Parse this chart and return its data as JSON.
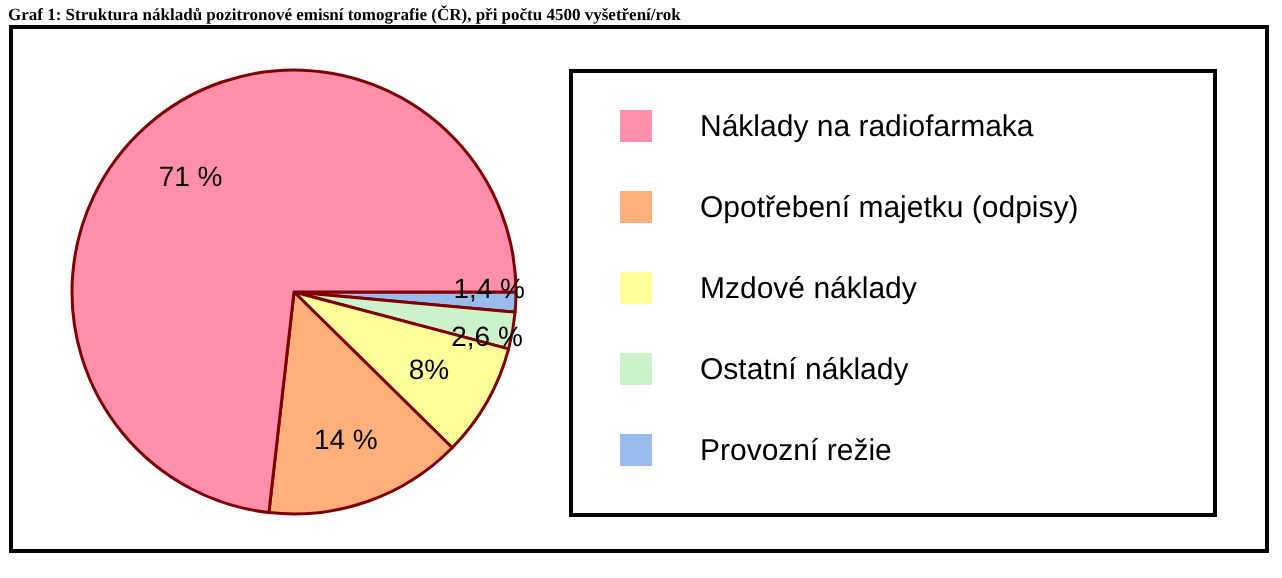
{
  "chart_data": {
    "type": "pie",
    "title": "Graf 1: Struktura nákladů pozitronové emisní tomografie (ČR), při počtu 4500 vyšetření/rok",
    "categories": [
      "Náklady na radiofarmaka",
      "Opotřebení majetku (odpisy)",
      "Mzdové náklady",
      "Ostatní náklady",
      "Provozní režie"
    ],
    "values": [
      71,
      14,
      8,
      2.6,
      1.4
    ],
    "colors": [
      "#ff8fab",
      "#ffb07a",
      "#ffff99",
      "#ccf2cc",
      "#99bbee"
    ],
    "value_labels": [
      "71 %",
      "14 %",
      "8%",
      "2,6 %",
      "1,4 %"
    ],
    "legend": "right"
  }
}
